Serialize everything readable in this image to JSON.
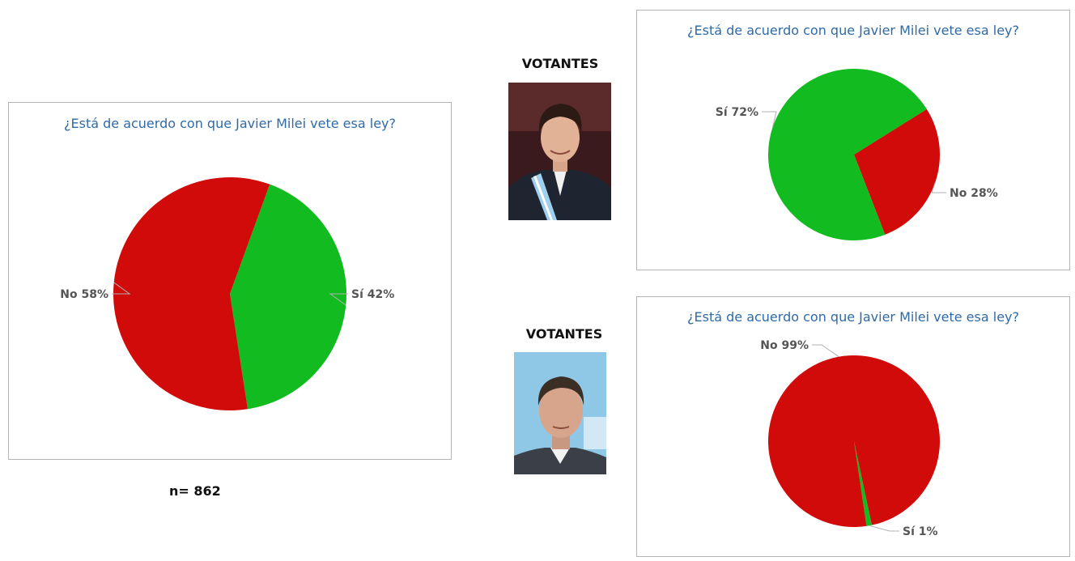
{
  "sample_size": "n= 862",
  "segments": [
    {
      "label": "VOTANTES"
    },
    {
      "label": "VOTANTES"
    }
  ],
  "colors": {
    "si": "#12bb1f",
    "no": "#d10a0a",
    "title": "#2e6ba6"
  },
  "chart_data": [
    {
      "type": "pie",
      "title": "¿Está de acuerdo con que Javier Milei vete esa ley?",
      "slices": [
        {
          "name": "Sí",
          "value": 42,
          "label": "Sí 42%",
          "color": "#12bb1f"
        },
        {
          "name": "No",
          "value": 58,
          "label": "No 58%",
          "color": "#d10a0a"
        }
      ]
    },
    {
      "type": "pie",
      "title": "¿Está de acuerdo con que Javier Milei vete esa ley?",
      "slices": [
        {
          "name": "No",
          "value": 28,
          "label": "No 28%",
          "color": "#d10a0a"
        },
        {
          "name": "Sí",
          "value": 72,
          "label": "Sí 72%",
          "color": "#12bb1f"
        }
      ]
    },
    {
      "type": "pie",
      "title": "¿Está de acuerdo con que Javier Milei vete esa ley?",
      "slices": [
        {
          "name": "Sí",
          "value": 1,
          "label": "Sí 1%",
          "color": "#12bb1f"
        },
        {
          "name": "No",
          "value": 99,
          "label": "No 99%",
          "color": "#d10a0a"
        }
      ]
    }
  ]
}
